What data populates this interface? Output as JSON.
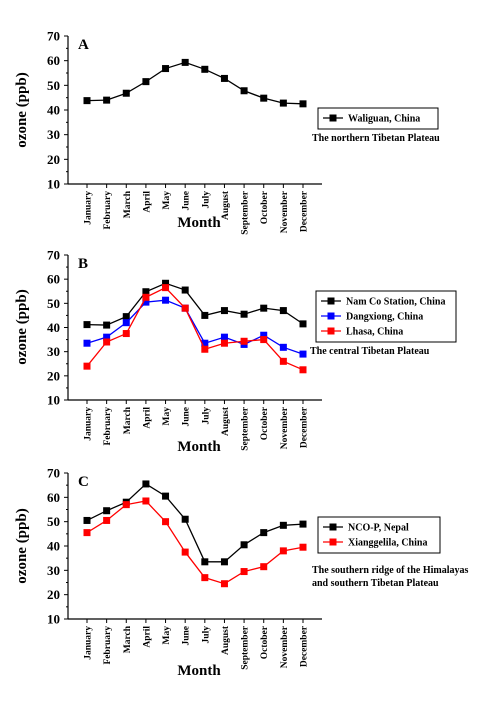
{
  "chart_data": [
    {
      "type": "line",
      "panel_letter": "A",
      "xlabel": "Month",
      "ylabel": "ozone (ppb)",
      "ylim": [
        10,
        70
      ],
      "yticks": [
        "10",
        "20",
        "30",
        "40",
        "50",
        "60",
        "70"
      ],
      "categories": [
        "January",
        "February",
        "March",
        "April",
        "May",
        "June",
        "July",
        "August",
        "September",
        "October",
        "November",
        "December"
      ],
      "series": [
        {
          "name": "Waliguan, China",
          "color": "#000000",
          "values": [
            43.8,
            44.0,
            46.8,
            51.5,
            56.8,
            59.3,
            56.5,
            52.8,
            47.8,
            44.8,
            42.8,
            42.5
          ]
        }
      ],
      "legend_position": "right",
      "region_lines": [
        "The northern Tibetan Plateau"
      ]
    },
    {
      "type": "line",
      "panel_letter": "B",
      "xlabel": "Month",
      "ylabel": "ozone (ppb)",
      "ylim": [
        10,
        70
      ],
      "yticks": [
        "10",
        "20",
        "30",
        "40",
        "50",
        "60",
        "70"
      ],
      "categories": [
        "January",
        "February",
        "March",
        "April",
        "May",
        "June",
        "July",
        "August",
        "September",
        "October",
        "November",
        "December"
      ],
      "series": [
        {
          "name": "Nam Co Station, China",
          "color": "#000000",
          "values": [
            41.2,
            41.0,
            44.5,
            54.8,
            58.3,
            55.5,
            45.0,
            47.0,
            45.5,
            48.0,
            47.0,
            41.5
          ]
        },
        {
          "name": "Dangxiong, China",
          "color": "#0000ff",
          "values": [
            33.5,
            36.0,
            42.0,
            50.5,
            51.3,
            48.0,
            33.5,
            36.0,
            33.0,
            36.8,
            31.8,
            29.0
          ]
        },
        {
          "name": "Lhasa, China",
          "color": "#ff0000",
          "values": [
            24.0,
            34.0,
            37.5,
            52.5,
            56.5,
            48.0,
            31.0,
            33.5,
            34.3,
            35.0,
            26.0,
            22.5
          ]
        }
      ],
      "legend_position": "right",
      "region_lines": [
        "The central Tibetan Plateau"
      ]
    },
    {
      "type": "line",
      "panel_letter": "C",
      "xlabel": "Month",
      "ylabel": "ozone (ppb)",
      "ylim": [
        10,
        70
      ],
      "yticks": [
        "10",
        "20",
        "30",
        "40",
        "50",
        "60",
        "70"
      ],
      "categories": [
        "January",
        "February",
        "March",
        "April",
        "May",
        "June",
        "July",
        "August",
        "September",
        "October",
        "November",
        "December"
      ],
      "series": [
        {
          "name": "NCO-P, Nepal",
          "color": "#000000",
          "values": [
            50.5,
            54.5,
            58.0,
            65.5,
            60.5,
            51.0,
            33.5,
            33.5,
            40.5,
            45.5,
            48.5,
            49.0
          ]
        },
        {
          "name": "Xianggelila, China",
          "color": "#ff0000",
          "values": [
            45.5,
            50.5,
            57.0,
            58.5,
            50.0,
            37.5,
            27.0,
            24.5,
            29.5,
            31.5,
            38.0,
            39.5
          ]
        }
      ],
      "legend_position": "right",
      "region_lines": [
        "The southern ridge of the Himalayas",
        "and southern Tibetan Plateau"
      ]
    }
  ]
}
